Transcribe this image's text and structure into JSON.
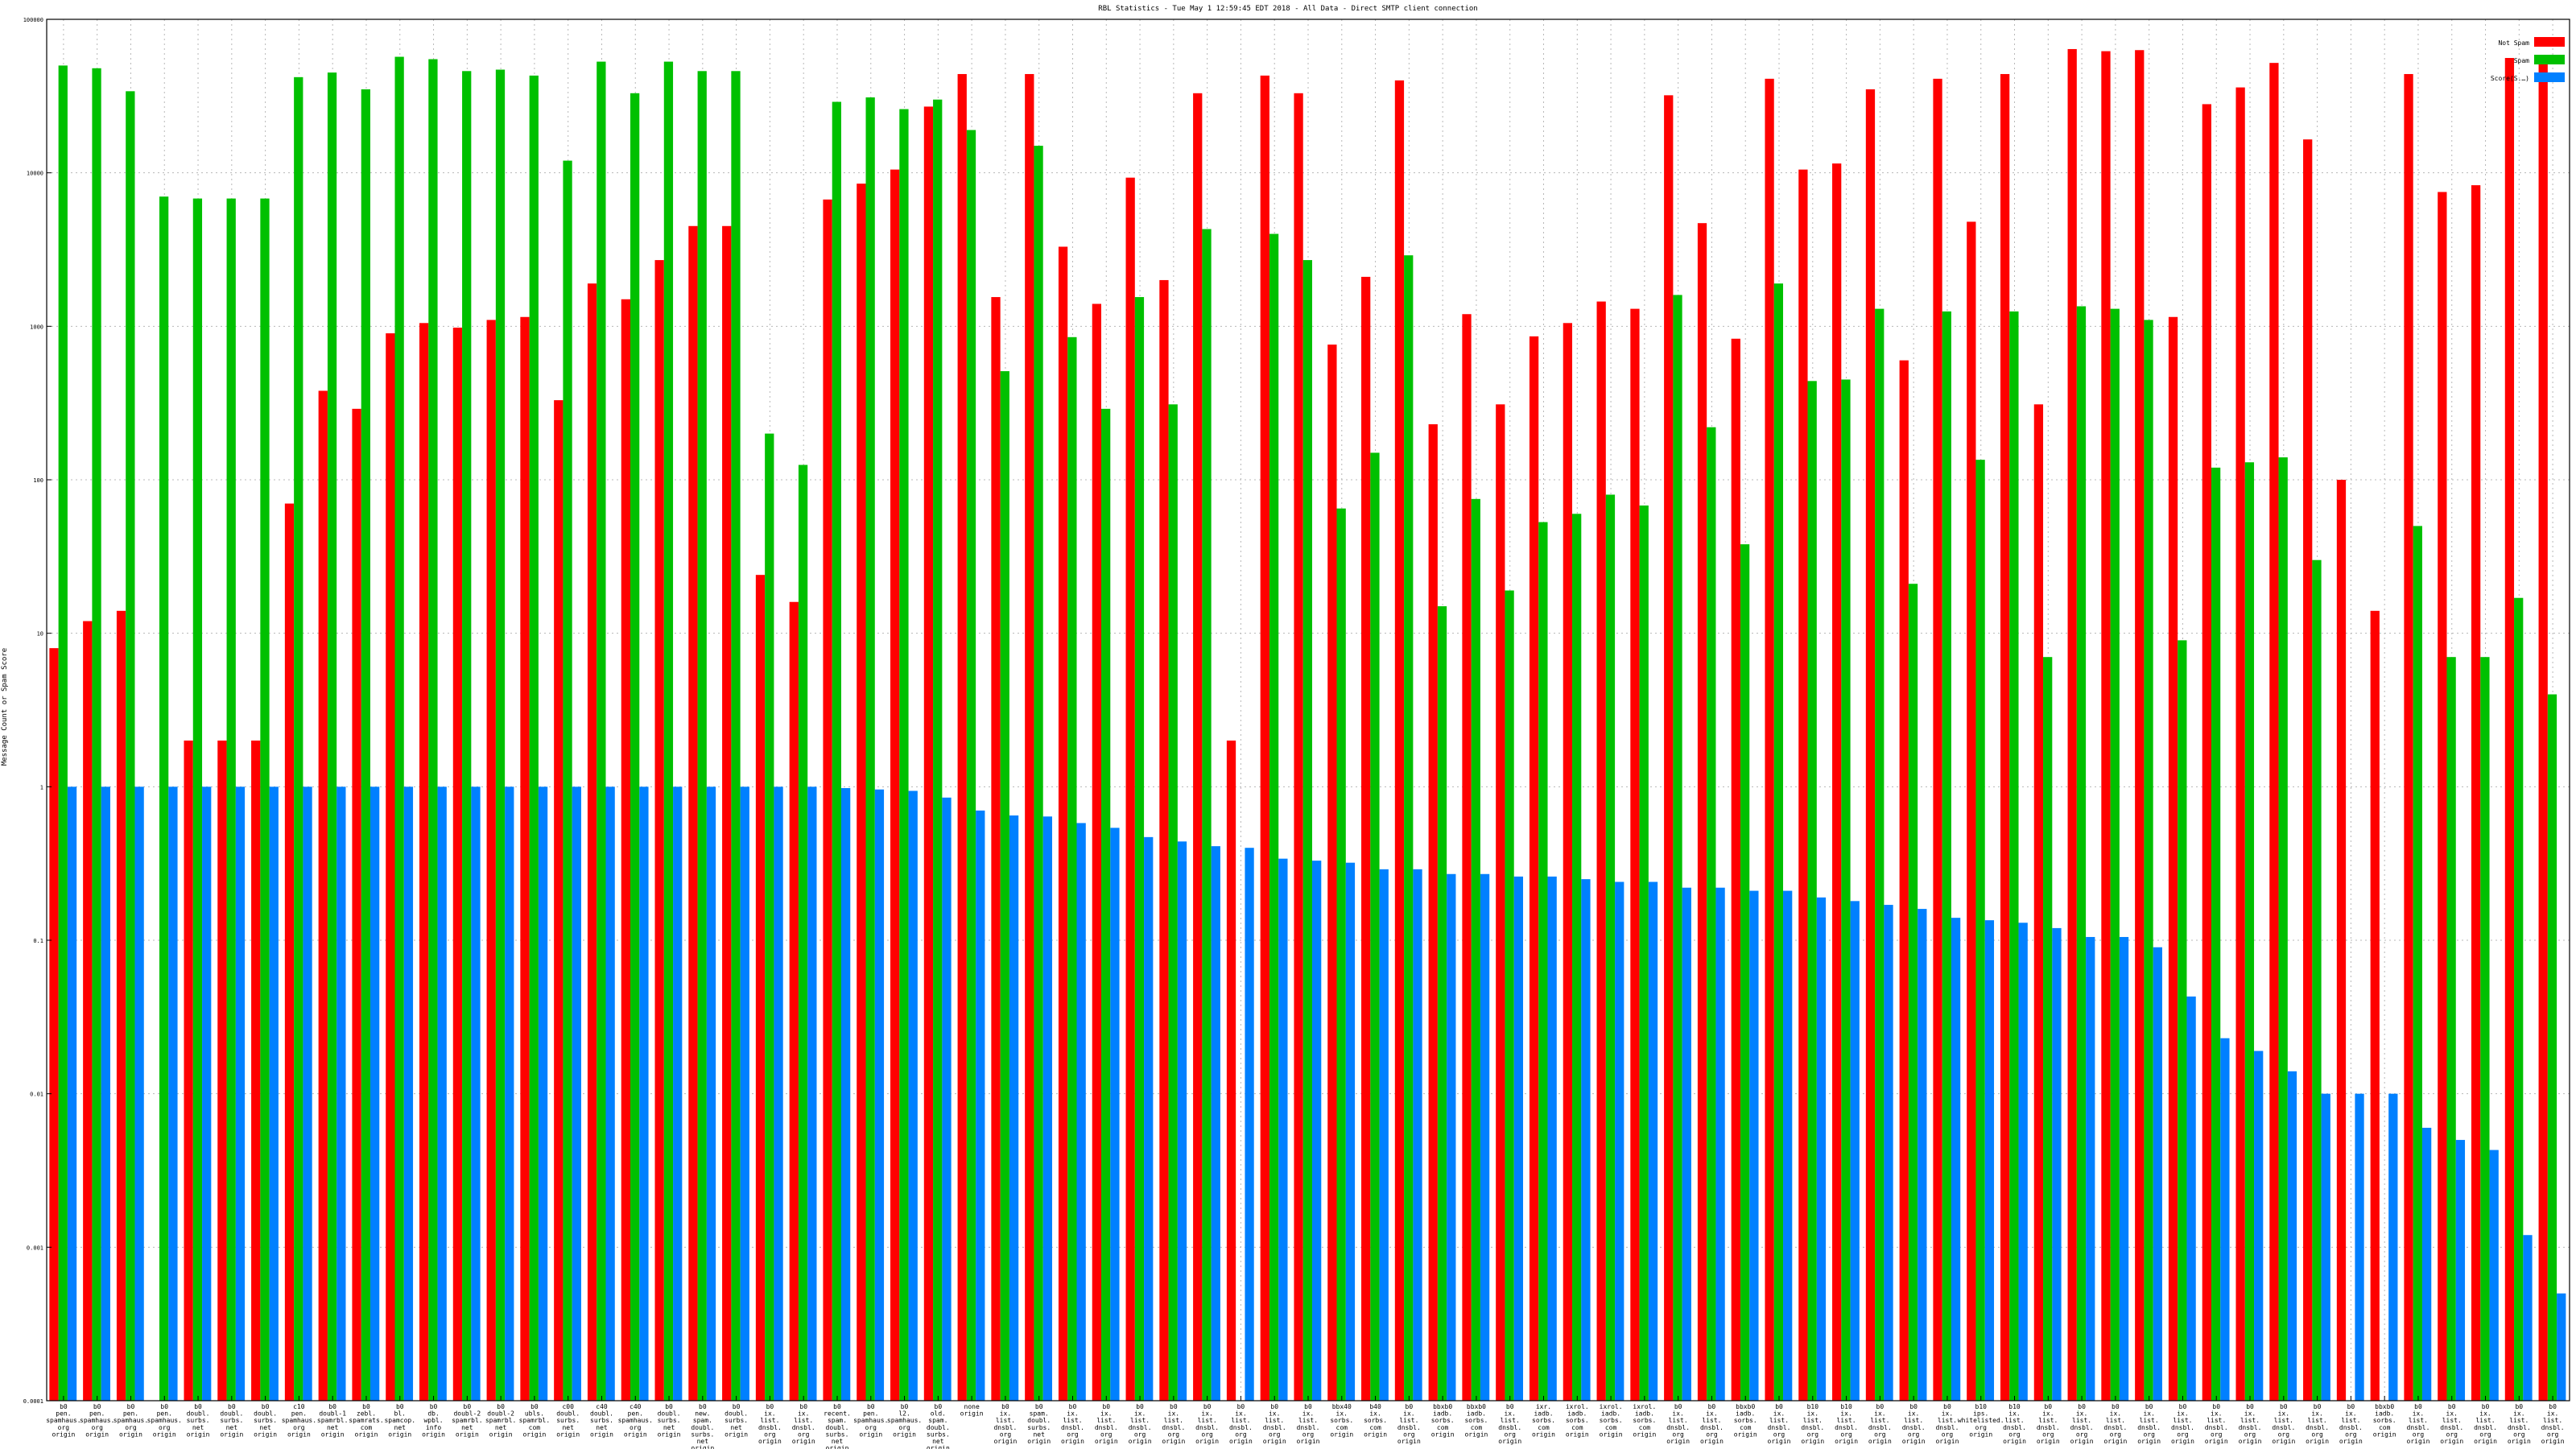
{
  "chart_data": {
    "type": "bar",
    "title": "RBL Statistics - Tue May  1 12:59:45 EDT 2018 - All Data - Direct SMTP client connection",
    "xlabel": "",
    "ylabel": "Message Count or Spam Score",
    "y_scale": "log",
    "ylim": [
      0.0001,
      100000
    ],
    "y_ticks": [
      "0.0001",
      "0.001",
      "0.01",
      "0.1",
      "1",
      "10",
      "100",
      "1000",
      "10000",
      "100000"
    ],
    "grid": true,
    "legend_position": "top-right",
    "series": [
      {
        "name": "Not Spam",
        "color": "#ff0000"
      },
      {
        "name": "Spam",
        "color": "#00c000"
      },
      {
        "name": "Score(S.…)",
        "color": "#0080ff"
      }
    ],
    "bars": [
      {
        "label": [
          "b0",
          "pen.",
          "spamhaus.",
          "org",
          "origin"
        ],
        "not_spam": 8,
        "spam": 50000,
        "score": 1
      },
      {
        "label": [
          "b0",
          "pen.",
          "spamhaus.",
          "org",
          "origin"
        ],
        "not_spam": 12,
        "spam": 48000,
        "score": 1
      },
      {
        "label": [
          "b0",
          "pen.",
          "spamhaus.",
          "org",
          "origin"
        ],
        "not_spam": 14,
        "spam": 34000,
        "score": 1
      },
      {
        "label": [
          "b0",
          "pen.",
          "spamhaus.",
          "org",
          "origin"
        ],
        "not_spam": null,
        "spam": 7000,
        "score": 1
      },
      {
        "label": [
          "b0",
          "doubl.",
          "surbs.",
          "net",
          "origin"
        ],
        "not_spam": 2,
        "spam": 6800,
        "score": 1
      },
      {
        "label": [
          "b0",
          "doubl.",
          "surbs.",
          "net",
          "origin"
        ],
        "not_spam": 2,
        "spam": 6800,
        "score": 1
      },
      {
        "label": [
          "b0",
          "doubl.",
          "surbs.",
          "net",
          "origin"
        ],
        "not_spam": 2,
        "spam": 6800,
        "score": 1
      },
      {
        "label": [
          "c10",
          "pen.",
          "spamhaus.",
          "org",
          "origin"
        ],
        "not_spam": 70,
        "spam": 42000,
        "score": 1
      },
      {
        "label": [
          "b0",
          "doubl-1",
          "spamrbl.",
          "net",
          "origin"
        ],
        "not_spam": 380,
        "spam": 45000,
        "score": 1
      },
      {
        "label": [
          "b0",
          "zebl.",
          "spamrats.",
          "com",
          "origin"
        ],
        "not_spam": 290,
        "spam": 35000,
        "score": 1
      },
      {
        "label": [
          "b0",
          "bl.",
          "spamcop.",
          "net",
          "origin"
        ],
        "not_spam": 900,
        "spam": 57000,
        "score": 1
      },
      {
        "label": [
          "b0",
          "db.",
          "wpbl.",
          "info",
          "origin"
        ],
        "not_spam": 1050,
        "spam": 55000,
        "score": 1
      },
      {
        "label": [
          "b0",
          "doubl-2",
          "spamrbl.",
          "net",
          "origin"
        ],
        "not_spam": 980,
        "spam": 46000,
        "score": 1
      },
      {
        "label": [
          "b0",
          "doubl-2",
          "spamrbl.",
          "net",
          "origin"
        ],
        "not_spam": 1100,
        "spam": 47000,
        "score": 1
      },
      {
        "label": [
          "b0",
          "ubls.",
          "spamrbl.",
          "com",
          "origin"
        ],
        "not_spam": 1150,
        "spam": 43000,
        "score": 1
      },
      {
        "label": [
          "c00",
          "doubl.",
          "surbs.",
          "net",
          "origin"
        ],
        "not_spam": 330,
        "spam": 12000,
        "score": 1
      },
      {
        "label": [
          "c40",
          "doubl.",
          "surbs.",
          "net",
          "origin"
        ],
        "not_spam": 1900,
        "spam": 53000,
        "score": 1
      },
      {
        "label": [
          "c40",
          "pen.",
          "spamhaus.",
          "org",
          "origin"
        ],
        "not_spam": 1500,
        "spam": 33000,
        "score": 1
      },
      {
        "label": [
          "b0",
          "doubl.",
          "surbs.",
          "net",
          "origin"
        ],
        "not_spam": 2700,
        "spam": 53000,
        "score": 1
      },
      {
        "label": [
          "b0",
          "new.",
          "spam.",
          "doubl.",
          "surbs.",
          "net",
          "origin"
        ],
        "not_spam": 4500,
        "spam": 46000,
        "score": 1
      },
      {
        "label": [
          "b0",
          "doubl.",
          "surbs.",
          "net",
          "origin"
        ],
        "not_spam": 4500,
        "spam": 46000,
        "score": 1
      },
      {
        "label": [
          "b0",
          "ix.",
          "list.",
          "dnsbl.",
          "org",
          "origin"
        ],
        "not_spam": 24,
        "spam": 200,
        "score": 1
      },
      {
        "label": [
          "b0",
          "ix.",
          "list.",
          "dnsbl.",
          "org",
          "origin"
        ],
        "not_spam": 16,
        "spam": 125,
        "score": 1
      },
      {
        "label": [
          "b0",
          "recent.",
          "spam.",
          "doubl.",
          "surbs.",
          "net",
          "origin"
        ],
        "not_spam": 6700,
        "spam": 29000,
        "score": 0.98
      },
      {
        "label": [
          "b0",
          "pen.",
          "spamhaus.",
          "org",
          "origin"
        ],
        "not_spam": 8500,
        "spam": 31000,
        "score": 0.96
      },
      {
        "label": [
          "b0",
          "l2.",
          "spamhaus.",
          "org",
          "origin"
        ],
        "not_spam": 10500,
        "spam": 26000,
        "score": 0.94
      },
      {
        "label": [
          "b0",
          "old.",
          "spam.",
          "doubl.",
          "surbs.",
          "net",
          "origin"
        ],
        "not_spam": 27000,
        "spam": 30000,
        "score": 0.85
      },
      {
        "label": [
          "none",
          "origin"
        ],
        "not_spam": 44000,
        "spam": 19000,
        "score": 0.7
      },
      {
        "label": [
          "b0",
          "ix.",
          "list.",
          "dnsbl.",
          "org",
          "origin"
        ],
        "not_spam": 1550,
        "spam": 510,
        "score": 0.65
      },
      {
        "label": [
          "b0",
          "spam.",
          "doubl.",
          "surbs.",
          "net",
          "origin"
        ],
        "not_spam": 44000,
        "spam": 15000,
        "score": 0.64
      },
      {
        "label": [
          "b0",
          "ix.",
          "list.",
          "dnsbl.",
          "org",
          "origin"
        ],
        "not_spam": 3300,
        "spam": 850,
        "score": 0.58
      },
      {
        "label": [
          "b0",
          "ix.",
          "list.",
          "dnsbl.",
          "org",
          "origin"
        ],
        "not_spam": 1400,
        "spam": 290,
        "score": 0.54
      },
      {
        "label": [
          "b0",
          "ix.",
          "list.",
          "dnsbl.",
          "org",
          "origin"
        ],
        "not_spam": 9300,
        "spam": 1550,
        "score": 0.47
      },
      {
        "label": [
          "b0",
          "ix.",
          "list.",
          "dnsbl.",
          "org",
          "origin"
        ],
        "not_spam": 2000,
        "spam": 310,
        "score": 0.44
      },
      {
        "label": [
          "b0",
          "ix.",
          "list.",
          "dnsbl.",
          "org",
          "origin"
        ],
        "not_spam": 33000,
        "spam": 4300,
        "score": 0.41
      },
      {
        "label": [
          "b0",
          "ix.",
          "list.",
          "dnsbl.",
          "org",
          "origin"
        ],
        "not_spam": 2,
        "spam": null,
        "score": 0.4
      },
      {
        "label": [
          "b0",
          "ix.",
          "list.",
          "dnsbl.",
          "org",
          "origin"
        ],
        "not_spam": 43000,
        "spam": 4000,
        "score": 0.34
      },
      {
        "label": [
          "b0",
          "ix.",
          "list.",
          "dnsbl.",
          "org",
          "origin"
        ],
        "not_spam": 33000,
        "spam": 2700,
        "score": 0.33
      },
      {
        "label": [
          "bbx40",
          "ix.",
          "sorbs.",
          "com",
          "origin"
        ],
        "not_spam": 760,
        "spam": 65,
        "score": 0.32
      },
      {
        "label": [
          "b40",
          "ix.",
          "sorbs.",
          "com",
          "origin"
        ],
        "not_spam": 2100,
        "spam": 150,
        "score": 0.29
      },
      {
        "label": [
          "b0",
          "ix.",
          "list.",
          "dnsbl.",
          "org",
          "origin"
        ],
        "not_spam": 40000,
        "spam": 2900,
        "score": 0.29
      },
      {
        "label": [
          "bbxb0",
          "iadb.",
          "sorbs.",
          "com",
          "origin"
        ],
        "not_spam": 230,
        "spam": 15,
        "score": 0.27
      },
      {
        "label": [
          "bbxb0",
          "iadb.",
          "sorbs.",
          "com",
          "origin"
        ],
        "not_spam": 1200,
        "spam": 75,
        "score": 0.27
      },
      {
        "label": [
          "b0",
          "ix.",
          "list.",
          "dnsbl.",
          "org",
          "origin"
        ],
        "not_spam": 310,
        "spam": 19,
        "score": 0.26
      },
      {
        "label": [
          "ixr.",
          "iadb.",
          "sorbs.",
          "com",
          "origin"
        ],
        "not_spam": 860,
        "spam": 53,
        "score": 0.26
      },
      {
        "label": [
          "ixrol.",
          "iadb.",
          "sorbs.",
          "com",
          "origin"
        ],
        "not_spam": 1050,
        "spam": 60,
        "score": 0.25
      },
      {
        "label": [
          "ixrol.",
          "iadb.",
          "sorbs.",
          "com",
          "origin"
        ],
        "not_spam": 1450,
        "spam": 80,
        "score": 0.24
      },
      {
        "label": [
          "ixrol.",
          "iadb.",
          "sorbs.",
          "com",
          "origin"
        ],
        "not_spam": 1300,
        "spam": 68,
        "score": 0.24
      },
      {
        "label": [
          "b0",
          "ix.",
          "list.",
          "dnsbl.",
          "org",
          "origin"
        ],
        "not_spam": 32000,
        "spam": 1600,
        "score": 0.22
      },
      {
        "label": [
          "b0",
          "ix.",
          "list.",
          "dnsbl.",
          "org",
          "origin"
        ],
        "not_spam": 4700,
        "spam": 220,
        "score": 0.22
      },
      {
        "label": [
          "bbxb0",
          "iadb.",
          "sorbs.",
          "com",
          "origin"
        ],
        "not_spam": 830,
        "spam": 38,
        "score": 0.21
      },
      {
        "label": [
          "b0",
          "ix.",
          "list.",
          "dnsbl.",
          "org",
          "origin"
        ],
        "not_spam": 41000,
        "spam": 1900,
        "score": 0.21
      },
      {
        "label": [
          "b10",
          "ix.",
          "list.",
          "dnsbl.",
          "org",
          "origin"
        ],
        "not_spam": 10500,
        "spam": 440,
        "score": 0.19
      },
      {
        "label": [
          "b10",
          "ix.",
          "list.",
          "dnsbl.",
          "org",
          "origin"
        ],
        "not_spam": 11500,
        "spam": 450,
        "score": 0.18
      },
      {
        "label": [
          "b0",
          "ix.",
          "list.",
          "dnsbl.",
          "org",
          "origin"
        ],
        "not_spam": 35000,
        "spam": 1300,
        "score": 0.17
      },
      {
        "label": [
          "b0",
          "ix.",
          "list.",
          "dnsbl.",
          "org",
          "origin"
        ],
        "not_spam": 600,
        "spam": 21,
        "score": 0.16
      },
      {
        "label": [
          "b0",
          "ix.",
          "list.",
          "dnsbl.",
          "org",
          "origin"
        ],
        "not_spam": 41000,
        "spam": 1250,
        "score": 0.14
      },
      {
        "label": [
          "b10",
          "ips.",
          "whitelisted.",
          "org",
          "origin"
        ],
        "not_spam": 4800,
        "spam": 135,
        "score": 0.135
      },
      {
        "label": [
          "b10",
          "ix.",
          "list.",
          "dnsbl.",
          "org",
          "origin"
        ],
        "not_spam": 44000,
        "spam": 1250,
        "score": 0.13
      },
      {
        "label": [
          "b0",
          "ix.",
          "list.",
          "dnsbl.",
          "org",
          "origin"
        ],
        "not_spam": 310,
        "spam": 7,
        "score": 0.12
      },
      {
        "label": [
          "b0",
          "ix.",
          "list.",
          "dnsbl.",
          "org",
          "origin"
        ],
        "not_spam": 64000,
        "spam": 1350,
        "score": 0.105
      },
      {
        "label": [
          "b0",
          "ix.",
          "list.",
          "dnsbl.",
          "org",
          "origin"
        ],
        "not_spam": 62000,
        "spam": 1300,
        "score": 0.105
      },
      {
        "label": [
          "b0",
          "ix.",
          "list.",
          "dnsbl.",
          "org",
          "origin"
        ],
        "not_spam": 63000,
        "spam": 1100,
        "score": 0.09
      },
      {
        "label": [
          "b0",
          "ix.",
          "list.",
          "dnsbl.",
          "org",
          "origin"
        ],
        "not_spam": 1150,
        "spam": 9,
        "score": 0.043
      },
      {
        "label": [
          "b0",
          "ix.",
          "list.",
          "dnsbl.",
          "org",
          "origin"
        ],
        "not_spam": 28000,
        "spam": 120,
        "score": 0.023
      },
      {
        "label": [
          "b0",
          "ix.",
          "list.",
          "dnsbl.",
          "org",
          "origin"
        ],
        "not_spam": 36000,
        "spam": 130,
        "score": 0.019
      },
      {
        "label": [
          "b0",
          "ix.",
          "list.",
          "dnsbl.",
          "org",
          "origin"
        ],
        "not_spam": 52000,
        "spam": 140,
        "score": 0.014
      },
      {
        "label": [
          "b0",
          "ix.",
          "list.",
          "dnsbl.",
          "org",
          "origin"
        ],
        "not_spam": 16500,
        "spam": 30,
        "score": 0.01
      },
      {
        "label": [
          "b0",
          "ix.",
          "list.",
          "dnsbl.",
          "org",
          "origin"
        ],
        "not_spam": 100,
        "spam": null,
        "score": 0.01
      },
      {
        "label": [
          "bbxb0",
          "iadb.",
          "sorbs.",
          "com",
          "origin"
        ],
        "not_spam": 14,
        "spam": null,
        "score": 0.01
      },
      {
        "label": [
          "b0",
          "ix.",
          "list.",
          "dnsbl.",
          "org",
          "origin"
        ],
        "not_spam": 44000,
        "spam": 50,
        "score": 0.006
      },
      {
        "label": [
          "b0",
          "ix.",
          "list.",
          "dnsbl.",
          "org",
          "origin"
        ],
        "not_spam": 7500,
        "spam": 7,
        "score": 0.005
      },
      {
        "label": [
          "b0",
          "ix.",
          "list.",
          "dnsbl.",
          "org",
          "origin"
        ],
        "not_spam": 8300,
        "spam": 7,
        "score": 0.0043
      },
      {
        "label": [
          "b0",
          "ix.",
          "list.",
          "dnsbl.",
          "org",
          "origin"
        ],
        "not_spam": 56000,
        "spam": 17,
        "score": 0.0012
      },
      {
        "label": [
          "b0",
          "ix.",
          "list.",
          "dnsbl.",
          "org",
          "origin"
        ],
        "not_spam": 56000,
        "spam": 4,
        "score": 0.0005
      }
    ]
  }
}
